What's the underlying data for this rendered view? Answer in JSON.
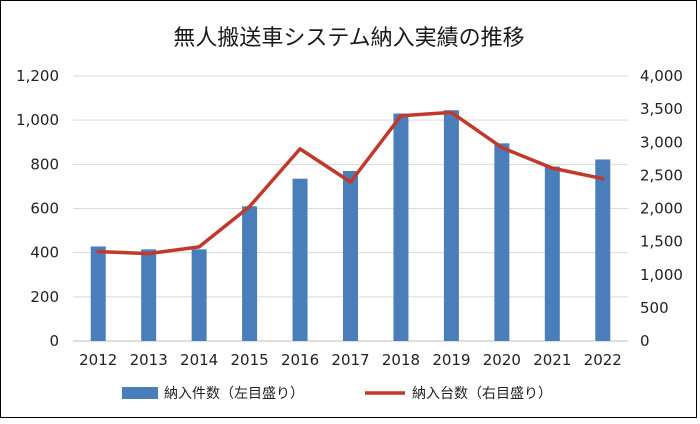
{
  "chart_data": {
    "type": "bar+line",
    "title": "無人搬送車システム納入実績の推移",
    "categories": [
      "2012",
      "2013",
      "2014",
      "2015",
      "2016",
      "2017",
      "2018",
      "2019",
      "2020",
      "2021",
      "2022"
    ],
    "series": [
      {
        "name": "納入件数（左目盛り）",
        "type": "bar",
        "axis": "left",
        "color": "#4a7ebb",
        "values": [
          428,
          415,
          415,
          610,
          735,
          770,
          1030,
          1045,
          895,
          790,
          822
        ]
      },
      {
        "name": "納入台数（右目盛り）",
        "type": "line",
        "axis": "right",
        "color": "#c0392b",
        "values": [
          1350,
          1320,
          1420,
          2030,
          2900,
          2400,
          3400,
          3450,
          2920,
          2610,
          2450
        ]
      }
    ],
    "y_left": {
      "min": 0,
      "max": 1200,
      "ticks": [
        "0",
        "200",
        "400",
        "600",
        "800",
        "1,000",
        "1,200"
      ]
    },
    "y_right": {
      "min": 0,
      "max": 4000,
      "ticks": [
        "0",
        "500",
        "1,000",
        "1,500",
        "2,000",
        "2,500",
        "3,000",
        "3,500",
        "4,000"
      ]
    },
    "grid": true,
    "legend_position": "bottom"
  }
}
